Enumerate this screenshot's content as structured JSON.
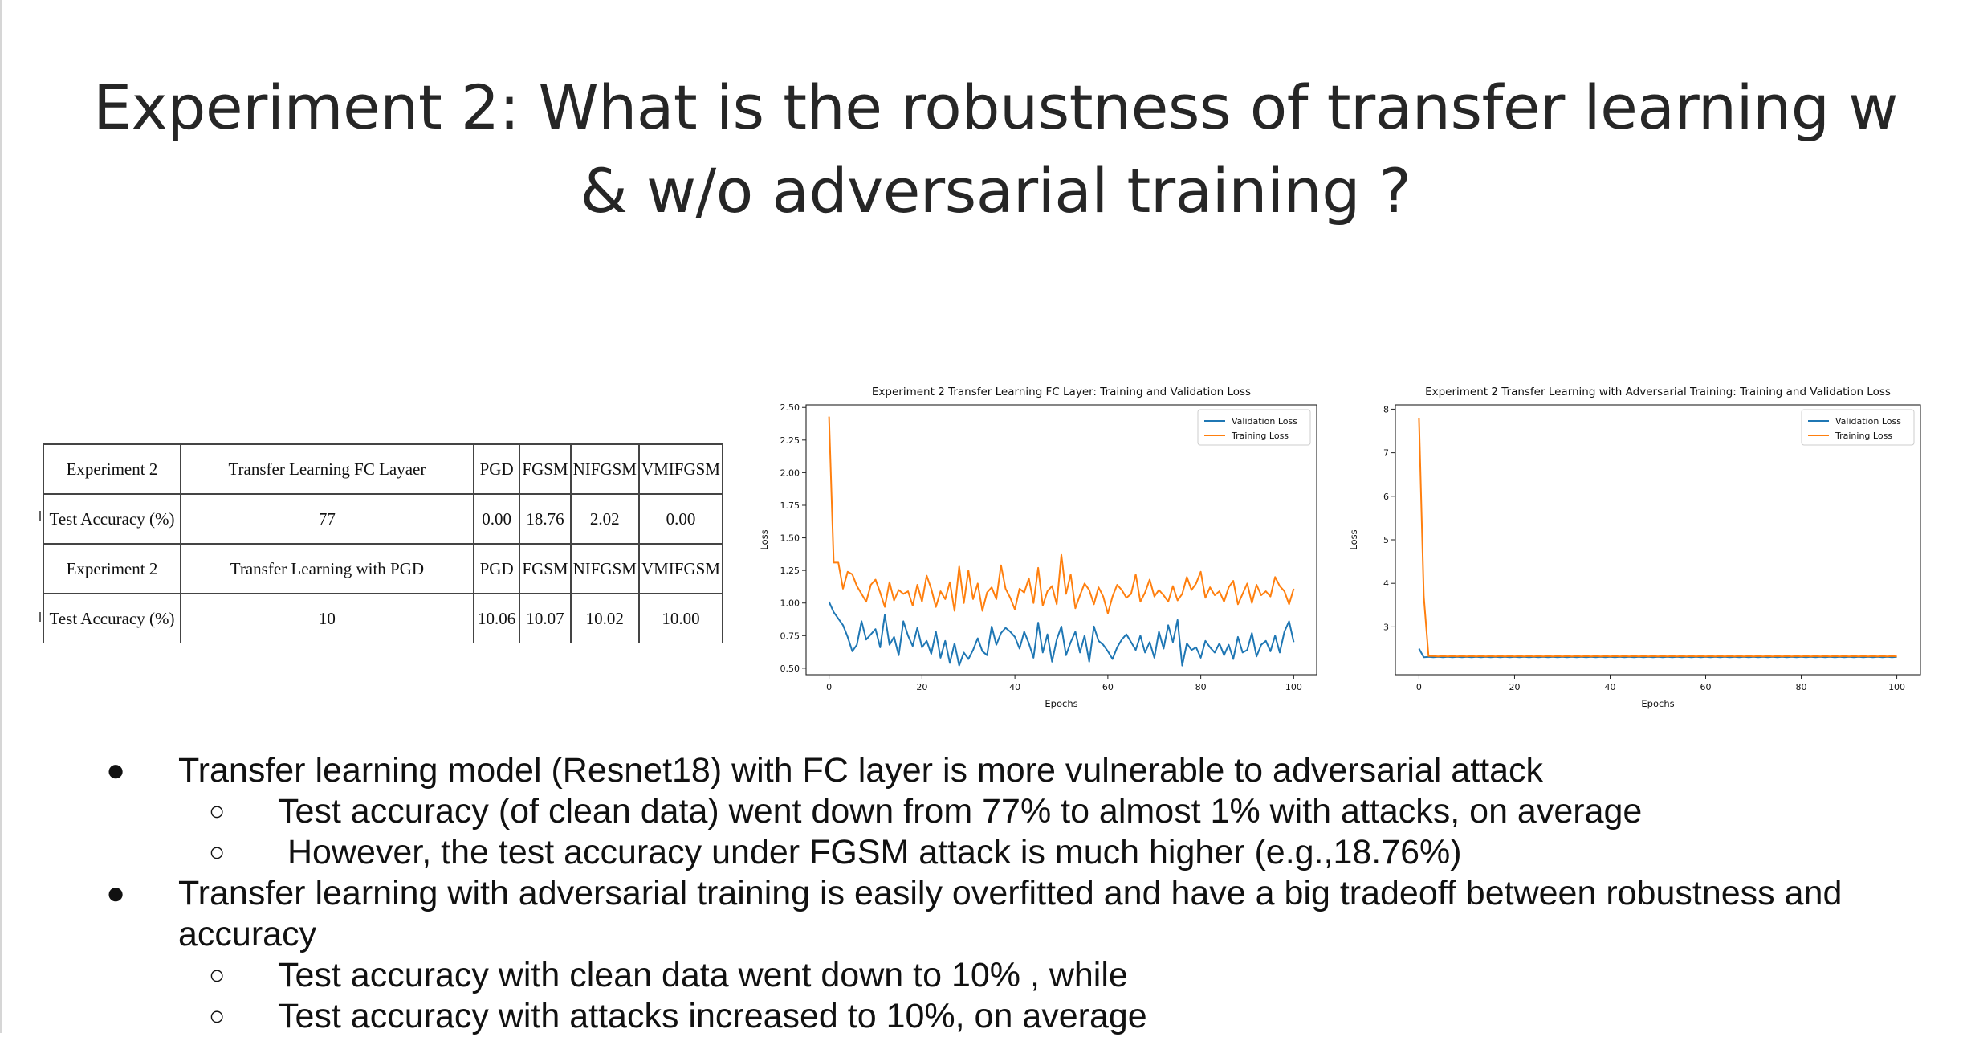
{
  "slide": {
    "title_line1": "Experiment 2: What is the robustness of transfer learning w",
    "title_line2": "& w/o adversarial training ?"
  },
  "results_table": {
    "rows": [
      [
        "Experiment 2",
        "Transfer Learning FC Layaer",
        "PGD",
        "FGSM",
        "NIFGSM",
        "VMIFGSM"
      ],
      [
        "Test Accuracy (%)",
        "77",
        "0.00",
        "18.76",
        "2.02",
        "0.00"
      ],
      [
        "Experiment 2",
        "Transfer Learning with PGD",
        "PGD",
        "FGSM",
        "NIFGSM",
        "VMIFGSM"
      ],
      [
        "Test Accuracy (%)",
        "10",
        "10.06",
        "10.07",
        "10.02",
        "10.00"
      ]
    ]
  },
  "chart_data": [
    {
      "type": "line",
      "title": "Experiment 2 Transfer Learning FC Layer: Training and Validation Loss",
      "xlabel": "Epochs",
      "ylabel": "Loss",
      "xlim": [
        0,
        100
      ],
      "ylim": [
        0.45,
        2.52
      ],
      "xticks": [
        0,
        20,
        40,
        60,
        80,
        100
      ],
      "yticks": [
        0.5,
        0.75,
        1.0,
        1.25,
        1.5,
        1.75,
        2.0,
        2.25,
        2.5
      ],
      "ytick_labels": [
        "0.50",
        "0.75",
        "1.00",
        "1.25",
        "1.50",
        "1.75",
        "2.00",
        "2.25",
        "2.50"
      ],
      "legend_position": "top-right",
      "x": [
        0,
        1,
        2,
        3,
        4,
        5,
        6,
        7,
        8,
        9,
        10,
        11,
        12,
        13,
        14,
        15,
        16,
        17,
        18,
        19,
        20,
        21,
        22,
        23,
        24,
        25,
        26,
        27,
        28,
        29,
        30,
        31,
        32,
        33,
        34,
        35,
        36,
        37,
        38,
        39,
        40,
        41,
        42,
        43,
        44,
        45,
        46,
        47,
        48,
        49,
        50,
        51,
        52,
        53,
        54,
        55,
        56,
        57,
        58,
        59,
        60,
        61,
        62,
        63,
        64,
        65,
        66,
        67,
        68,
        69,
        70,
        71,
        72,
        73,
        74,
        75,
        76,
        77,
        78,
        79,
        80,
        81,
        82,
        83,
        84,
        85,
        86,
        87,
        88,
        89,
        90,
        91,
        92,
        93,
        94,
        95,
        96,
        97,
        98,
        99,
        100
      ],
      "series": [
        {
          "name": "Validation Loss",
          "color": "#1f77b4",
          "values": [
            1.01,
            0.93,
            0.88,
            0.83,
            0.74,
            0.63,
            0.68,
            0.86,
            0.72,
            0.76,
            0.8,
            0.66,
            0.91,
            0.68,
            0.74,
            0.6,
            0.86,
            0.75,
            0.67,
            0.81,
            0.66,
            0.71,
            0.61,
            0.78,
            0.58,
            0.71,
            0.54,
            0.69,
            0.52,
            0.62,
            0.57,
            0.64,
            0.73,
            0.63,
            0.6,
            0.82,
            0.68,
            0.77,
            0.81,
            0.78,
            0.74,
            0.65,
            0.78,
            0.69,
            0.58,
            0.85,
            0.62,
            0.76,
            0.55,
            0.72,
            0.82,
            0.6,
            0.7,
            0.78,
            0.62,
            0.75,
            0.55,
            0.82,
            0.71,
            0.68,
            0.63,
            0.57,
            0.66,
            0.72,
            0.76,
            0.7,
            0.64,
            0.75,
            0.62,
            0.7,
            0.58,
            0.78,
            0.65,
            0.83,
            0.7,
            0.87,
            0.52,
            0.69,
            0.64,
            0.66,
            0.58,
            0.71,
            0.66,
            0.62,
            0.69,
            0.6,
            0.68,
            0.57,
            0.74,
            0.62,
            0.64,
            0.77,
            0.59,
            0.68,
            0.71,
            0.63,
            0.75,
            0.62,
            0.78,
            0.86,
            0.7
          ]
        },
        {
          "name": "Training Loss",
          "color": "#ff7f0e",
          "values": [
            2.43,
            1.31,
            1.31,
            1.11,
            1.24,
            1.22,
            1.13,
            1.07,
            1.01,
            1.14,
            1.18,
            1.08,
            0.97,
            1.16,
            1.02,
            1.1,
            1.07,
            1.09,
            0.98,
            1.14,
            1.01,
            1.21,
            1.11,
            0.97,
            1.09,
            1.03,
            1.16,
            0.94,
            1.28,
            1.0,
            1.25,
            1.03,
            1.15,
            0.94,
            1.08,
            1.12,
            1.03,
            1.29,
            1.11,
            1.04,
            0.95,
            1.11,
            1.08,
            1.19,
            1.0,
            1.27,
            0.98,
            1.09,
            1.13,
            0.99,
            1.37,
            1.07,
            1.22,
            0.96,
            1.06,
            1.15,
            1.1,
            0.99,
            1.12,
            1.05,
            0.92,
            1.05,
            1.14,
            1.1,
            1.04,
            1.07,
            1.22,
            1.01,
            1.08,
            1.18,
            1.05,
            1.1,
            1.06,
            1.01,
            1.13,
            1.02,
            1.07,
            1.2,
            1.1,
            1.15,
            1.24,
            1.04,
            1.12,
            1.06,
            1.09,
            1.01,
            1.12,
            1.17,
            0.99,
            1.07,
            1.15,
            1.0,
            1.14,
            1.06,
            1.09,
            1.05,
            1.2,
            1.13,
            1.09,
            0.99,
            1.11
          ]
        }
      ]
    },
    {
      "type": "line",
      "title": "Experiment 2 Transfer Learning with Adversarial Training: Training and Validation Loss",
      "xlabel": "Epochs",
      "ylabel": "Loss",
      "xlim": [
        0,
        100
      ],
      "ylim": [
        1.9,
        8.1
      ],
      "xticks": [
        0,
        20,
        40,
        60,
        80,
        100
      ],
      "yticks": [
        3,
        4,
        5,
        6,
        7,
        8
      ],
      "ytick_labels": [
        "3",
        "4",
        "5",
        "6",
        "7",
        "8"
      ],
      "legend_position": "top-right",
      "x": [
        0,
        1,
        2,
        3,
        4,
        5,
        6,
        7,
        8,
        9,
        10,
        11,
        12,
        13,
        14,
        15,
        16,
        17,
        18,
        19,
        20,
        21,
        22,
        23,
        24,
        25,
        26,
        27,
        28,
        29,
        30,
        31,
        32,
        33,
        34,
        35,
        36,
        37,
        38,
        39,
        40,
        41,
        42,
        43,
        44,
        45,
        46,
        47,
        48,
        49,
        50,
        51,
        52,
        53,
        54,
        55,
        56,
        57,
        58,
        59,
        60,
        61,
        62,
        63,
        64,
        65,
        66,
        67,
        68,
        69,
        70,
        71,
        72,
        73,
        74,
        75,
        76,
        77,
        78,
        79,
        80,
        81,
        82,
        83,
        84,
        85,
        86,
        87,
        88,
        89,
        90,
        91,
        92,
        93,
        94,
        95,
        96,
        97,
        98,
        99,
        100
      ],
      "series": [
        {
          "name": "Validation Loss",
          "color": "#1f77b4",
          "values": [
            2.5,
            2.3,
            2.31,
            2.3,
            2.31,
            2.3,
            2.31,
            2.3,
            2.31,
            2.3,
            2.31,
            2.3,
            2.31,
            2.3,
            2.31,
            2.3,
            2.31,
            2.3,
            2.31,
            2.3,
            2.31,
            2.3,
            2.31,
            2.3,
            2.31,
            2.3,
            2.31,
            2.3,
            2.31,
            2.3,
            2.31,
            2.3,
            2.31,
            2.3,
            2.31,
            2.3,
            2.31,
            2.3,
            2.31,
            2.3,
            2.31,
            2.3,
            2.31,
            2.3,
            2.31,
            2.3,
            2.31,
            2.3,
            2.31,
            2.3,
            2.31,
            2.3,
            2.31,
            2.3,
            2.31,
            2.3,
            2.31,
            2.3,
            2.31,
            2.3,
            2.31,
            2.3,
            2.31,
            2.3,
            2.31,
            2.3,
            2.31,
            2.3,
            2.31,
            2.3,
            2.31,
            2.3,
            2.31,
            2.3,
            2.31,
            2.3,
            2.31,
            2.3,
            2.31,
            2.3,
            2.31,
            2.3,
            2.31,
            2.3,
            2.31,
            2.3,
            2.31,
            2.3,
            2.31,
            2.3,
            2.31,
            2.3,
            2.31,
            2.3,
            2.31,
            2.3,
            2.31,
            2.3,
            2.31,
            2.3,
            2.31
          ]
        },
        {
          "name": "Training Loss",
          "color": "#ff7f0e",
          "values": [
            7.8,
            3.7,
            2.33,
            2.33,
            2.32,
            2.33,
            2.32,
            2.33,
            2.32,
            2.33,
            2.32,
            2.33,
            2.32,
            2.33,
            2.32,
            2.33,
            2.32,
            2.33,
            2.32,
            2.33,
            2.32,
            2.33,
            2.32,
            2.33,
            2.32,
            2.33,
            2.32,
            2.33,
            2.32,
            2.33,
            2.32,
            2.33,
            2.32,
            2.33,
            2.32,
            2.33,
            2.32,
            2.33,
            2.32,
            2.33,
            2.32,
            2.33,
            2.32,
            2.33,
            2.32,
            2.33,
            2.32,
            2.33,
            2.32,
            2.33,
            2.32,
            2.33,
            2.32,
            2.33,
            2.32,
            2.33,
            2.32,
            2.33,
            2.32,
            2.33,
            2.32,
            2.33,
            2.32,
            2.33,
            2.32,
            2.33,
            2.32,
            2.33,
            2.32,
            2.33,
            2.32,
            2.33,
            2.32,
            2.33,
            2.32,
            2.33,
            2.32,
            2.33,
            2.32,
            2.33,
            2.32,
            2.33,
            2.32,
            2.33,
            2.32,
            2.33,
            2.32,
            2.33,
            2.32,
            2.33,
            2.32,
            2.33,
            2.32,
            2.33,
            2.32,
            2.33,
            2.32,
            2.33,
            2.32,
            2.33,
            2.32
          ]
        }
      ]
    }
  ],
  "bullets": [
    {
      "level": 1,
      "marker": "●",
      "text": "Transfer learning model (Resnet18) with FC layer is more vulnerable to adversarial attack"
    },
    {
      "level": 2,
      "marker": "○",
      "text": "Test accuracy (of clean data) went down from 77% to almost 1% with attacks, on average"
    },
    {
      "level": 2,
      "marker": "○",
      "text": " However, the test accuracy under FGSM attack is much higher (e.g.,18.76%)"
    },
    {
      "level": 1,
      "marker": "●",
      "text": "Transfer learning with adversarial training is easily overfitted and have a big tradeoff between robustness and accuracy"
    },
    {
      "level": 2,
      "marker": "○",
      "text": "Test accuracy with clean data went down to 10% , while"
    },
    {
      "level": 2,
      "marker": "○",
      "text": "Test accuracy with attacks increased to 10%, on average"
    }
  ]
}
